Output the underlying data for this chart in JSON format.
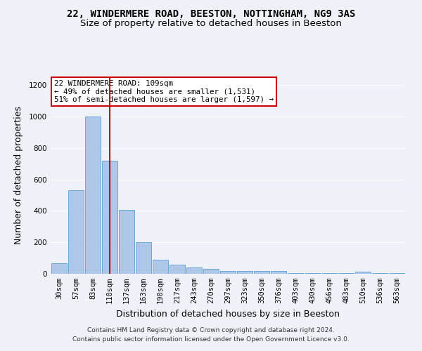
{
  "title": "22, WINDERMERE ROAD, BEESTON, NOTTINGHAM, NG9 3AS",
  "subtitle": "Size of property relative to detached houses in Beeston",
  "xlabel": "Distribution of detached houses by size in Beeston",
  "ylabel": "Number of detached properties",
  "footer_line1": "Contains HM Land Registry data © Crown copyright and database right 2024.",
  "footer_line2": "Contains public sector information licensed under the Open Government Licence v3.0.",
  "categories": [
    "30sqm",
    "57sqm",
    "83sqm",
    "110sqm",
    "137sqm",
    "163sqm",
    "190sqm",
    "217sqm",
    "243sqm",
    "270sqm",
    "297sqm",
    "323sqm",
    "350sqm",
    "376sqm",
    "403sqm",
    "430sqm",
    "456sqm",
    "483sqm",
    "510sqm",
    "536sqm",
    "563sqm"
  ],
  "values": [
    65,
    530,
    1000,
    720,
    405,
    200,
    90,
    60,
    40,
    32,
    18,
    18,
    20,
    18,
    5,
    5,
    5,
    5,
    12,
    5,
    5
  ],
  "bar_color": "#aec6e8",
  "bar_edge_color": "#5a9fd4",
  "highlight_idx": 3,
  "highlight_color": "#cc0000",
  "annotation_line1": "22 WINDERMERE ROAD: 109sqm",
  "annotation_line2": "← 49% of detached houses are smaller (1,531)",
  "annotation_line3": "51% of semi-detached houses are larger (1,597) →",
  "annotation_box_color": "#ffffff",
  "annotation_box_edge_color": "#cc0000",
  "ylim": [
    0,
    1250
  ],
  "yticks": [
    0,
    200,
    400,
    600,
    800,
    1000,
    1200
  ],
  "bg_color": "#eef2f8",
  "grid_color": "#ffffff",
  "title_fontsize": 10,
  "subtitle_fontsize": 9.5,
  "axis_label_fontsize": 9,
  "tick_fontsize": 7.5,
  "footer_fontsize": 6.5
}
